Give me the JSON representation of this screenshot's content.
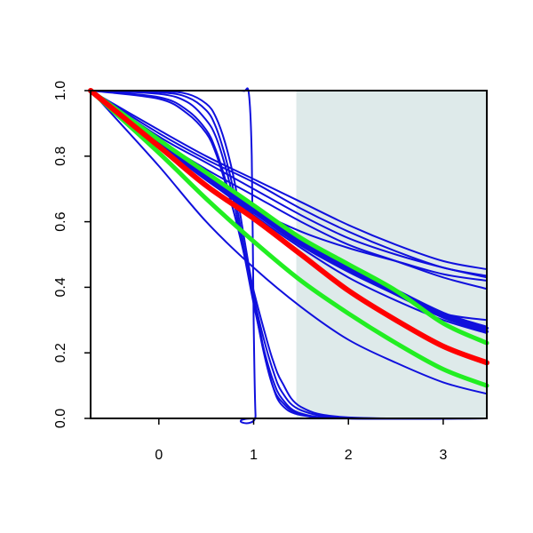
{
  "chart_data": {
    "type": "line",
    "title": "",
    "xlabel": "",
    "ylabel": "",
    "xlim": [
      -0.72,
      3.46
    ],
    "ylim": [
      0.0,
      1.0
    ],
    "x_ticks": [
      0,
      1,
      2,
      3
    ],
    "x_tick_labels": [
      "0",
      "1",
      "2",
      "3"
    ],
    "y_ticks": [
      0.0,
      0.2,
      0.4,
      0.6,
      0.8,
      1.0
    ],
    "y_tick_labels": [
      "0.0",
      "0.2",
      "0.4",
      "0.6",
      "0.8",
      "1.0"
    ],
    "grid": false,
    "shaded_region": {
      "x_from": 1.45,
      "x_to": 3.46,
      "color": "#deeaea"
    },
    "colors": {
      "blue": "#1010dd",
      "red": "#ff0000",
      "green": "#22ee22",
      "shade": "#deeaea"
    },
    "series": [
      {
        "color": "#1010dd",
        "width": 2,
        "x": [
          -0.72,
          0.0,
          0.5,
          0.8,
          0.9,
          0.95,
          0.98,
          1.0,
          1.02,
          1.05,
          3.46
        ],
        "y": [
          1.0,
          1.0,
          1.0,
          1.0,
          0.999,
          0.99,
          0.8,
          0.3,
          0.01,
          0.0,
          0.0
        ]
      },
      {
        "color": "#1010dd",
        "width": 2,
        "x": [
          -0.72,
          0.0,
          0.3,
          0.5,
          0.6,
          0.7,
          0.8,
          0.9,
          1.0,
          1.1,
          1.2,
          1.3,
          1.5,
          2.0,
          3.46
        ],
        "y": [
          1.0,
          0.998,
          0.99,
          0.96,
          0.92,
          0.84,
          0.72,
          0.55,
          0.38,
          0.22,
          0.1,
          0.04,
          0.01,
          0.0,
          0.0
        ]
      },
      {
        "color": "#1010dd",
        "width": 2,
        "x": [
          -0.72,
          0.0,
          0.3,
          0.5,
          0.6,
          0.7,
          0.8,
          0.9,
          1.0,
          1.1,
          1.2,
          1.3,
          1.5,
          2.0,
          3.46
        ],
        "y": [
          1.0,
          0.995,
          0.98,
          0.94,
          0.89,
          0.8,
          0.68,
          0.52,
          0.36,
          0.21,
          0.1,
          0.05,
          0.012,
          0.0,
          0.0
        ]
      },
      {
        "color": "#1010dd",
        "width": 2,
        "x": [
          -0.72,
          0.0,
          0.3,
          0.5,
          0.6,
          0.7,
          0.8,
          0.9,
          1.0,
          1.1,
          1.2,
          1.3,
          1.5,
          2.0,
          3.46
        ],
        "y": [
          1.0,
          0.99,
          0.965,
          0.91,
          0.86,
          0.77,
          0.65,
          0.5,
          0.35,
          0.22,
          0.12,
          0.06,
          0.015,
          0.0,
          0.0
        ]
      },
      {
        "color": "#1010dd",
        "width": 2,
        "x": [
          -0.72,
          0.0,
          0.3,
          0.5,
          0.6,
          0.7,
          0.8,
          0.9,
          1.0,
          1.1,
          1.2,
          1.3,
          1.5,
          2.0,
          3.46
        ],
        "y": [
          1.0,
          0.98,
          0.94,
          0.88,
          0.82,
          0.73,
          0.62,
          0.5,
          0.37,
          0.25,
          0.15,
          0.08,
          0.025,
          0.002,
          0.0
        ]
      },
      {
        "color": "#1010dd",
        "width": 2,
        "x": [
          -0.72,
          0.0,
          0.3,
          0.5,
          0.6,
          0.7,
          0.8,
          0.9,
          1.0,
          1.1,
          1.2,
          1.3,
          1.5,
          2.0,
          3.46
        ],
        "y": [
          1.0,
          0.975,
          0.93,
          0.87,
          0.81,
          0.72,
          0.62,
          0.51,
          0.39,
          0.28,
          0.18,
          0.11,
          0.035,
          0.003,
          0.0
        ]
      },
      {
        "color": "#1010dd",
        "width": 2,
        "x": [
          -0.72,
          0.0,
          0.5,
          1.0,
          1.5,
          2.0,
          2.5,
          3.0,
          3.46
        ],
        "y": [
          1.0,
          0.84,
          0.74,
          0.64,
          0.57,
          0.52,
          0.48,
          0.44,
          0.42
        ]
      },
      {
        "color": "#1010dd",
        "width": 2,
        "x": [
          -0.72,
          0.0,
          0.5,
          1.0,
          1.5,
          2.0,
          2.5,
          3.0,
          3.46
        ],
        "y": [
          1.0,
          0.85,
          0.76,
          0.68,
          0.6,
          0.53,
          0.48,
          0.43,
          0.395
        ]
      },
      {
        "color": "#1010dd",
        "width": 2,
        "x": [
          -0.72,
          0.0,
          0.5,
          1.0,
          1.5,
          2.0,
          2.5,
          3.0,
          3.46
        ],
        "y": [
          1.0,
          0.86,
          0.78,
          0.7,
          0.62,
          0.55,
          0.5,
          0.46,
          0.43
        ]
      },
      {
        "color": "#1010dd",
        "width": 2,
        "x": [
          -0.72,
          0.0,
          0.5,
          1.0,
          1.5,
          2.0,
          2.5,
          3.0,
          3.46
        ],
        "y": [
          1.0,
          0.87,
          0.79,
          0.72,
          0.64,
          0.57,
          0.51,
          0.46,
          0.435
        ]
      },
      {
        "color": "#1010dd",
        "width": 2,
        "x": [
          -0.72,
          0.0,
          0.5,
          1.0,
          1.5,
          2.0,
          2.5,
          3.0,
          3.46
        ],
        "y": [
          1.0,
          0.88,
          0.8,
          0.73,
          0.66,
          0.59,
          0.53,
          0.48,
          0.455
        ]
      },
      {
        "color": "#1010dd",
        "width": 2,
        "x": [
          -0.72,
          0.0,
          0.5,
          1.0,
          1.5,
          2.0,
          2.5,
          3.0,
          3.46
        ],
        "y": [
          1.0,
          0.85,
          0.74,
          0.63,
          0.54,
          0.45,
          0.38,
          0.32,
          0.28
        ]
      },
      {
        "color": "#1010dd",
        "width": 2,
        "x": [
          -0.72,
          0.0,
          0.5,
          1.0,
          1.5,
          2.0,
          2.5,
          3.0,
          3.46
        ],
        "y": [
          1.0,
          0.85,
          0.75,
          0.64,
          0.55,
          0.46,
          0.38,
          0.32,
          0.3
        ]
      },
      {
        "color": "#1010dd",
        "width": 2,
        "x": [
          -0.72,
          0.0,
          0.5,
          1.0,
          1.5,
          2.0,
          2.5,
          3.0,
          3.46
        ],
        "y": [
          1.0,
          0.84,
          0.73,
          0.62,
          0.52,
          0.43,
          0.36,
          0.3,
          0.26
        ]
      },
      {
        "color": "#1010dd",
        "width": 4,
        "x": [
          -0.72,
          0.0,
          0.5,
          1.0,
          1.5,
          2.0,
          2.5,
          3.0,
          3.46
        ],
        "y": [
          1.0,
          0.84,
          0.73,
          0.63,
          0.53,
          0.45,
          0.38,
          0.31,
          0.265
        ]
      },
      {
        "color": "#1010dd",
        "width": 4,
        "x": [
          -0.72,
          0.0,
          0.5,
          1.0,
          1.5,
          2.0,
          2.5,
          3.0,
          3.46
        ],
        "y": [
          1.0,
          0.85,
          0.74,
          0.64,
          0.54,
          0.46,
          0.39,
          0.32,
          0.275
        ]
      },
      {
        "color": "#1010dd",
        "width": 2,
        "x": [
          -0.72,
          -0.5,
          0.0,
          0.5,
          1.0,
          1.5,
          2.0,
          2.5,
          3.0,
          3.46
        ],
        "y": [
          1.0,
          0.93,
          0.77,
          0.6,
          0.46,
          0.34,
          0.24,
          0.17,
          0.11,
          0.075
        ]
      },
      {
        "color": "#22ee22",
        "width": 5,
        "x": [
          -0.72,
          0.0,
          0.5,
          1.0,
          1.5,
          2.0,
          2.5,
          3.0,
          3.46
        ],
        "y": [
          1.0,
          0.85,
          0.75,
          0.65,
          0.55,
          0.47,
          0.39,
          0.29,
          0.23
        ]
      },
      {
        "color": "#22ee22",
        "width": 5,
        "x": [
          -0.72,
          0.0,
          0.5,
          1.0,
          1.5,
          2.0,
          2.5,
          3.0,
          3.46
        ],
        "y": [
          1.0,
          0.81,
          0.67,
          0.54,
          0.42,
          0.32,
          0.23,
          0.15,
          0.1
        ]
      },
      {
        "color": "#ff0000",
        "width": 6,
        "x": [
          -0.72,
          0.0,
          0.5,
          1.0,
          1.5,
          2.0,
          2.5,
          3.0,
          3.46
        ],
        "y": [
          1.0,
          0.83,
          0.71,
          0.61,
          0.5,
          0.39,
          0.3,
          0.22,
          0.17
        ]
      }
    ]
  }
}
